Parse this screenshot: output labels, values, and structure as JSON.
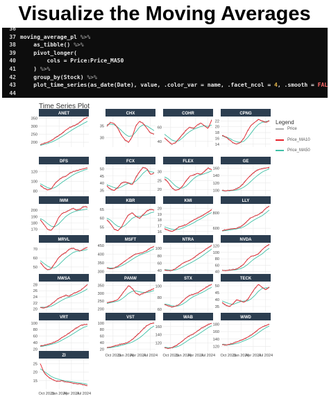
{
  "headline": "Visualize the Moving Averages",
  "code_lines": [
    {
      "n": "36",
      "text": ""
    },
    {
      "n": "37",
      "text": "moving_average_pl %>%"
    },
    {
      "n": "38",
      "text": "    as_tibble() %>%"
    },
    {
      "n": "39",
      "text": "    pivot_longer("
    },
    {
      "n": "40",
      "text": "        cols = Price:Price_MA50"
    },
    {
      "n": "41",
      "text": "    ) %>%"
    },
    {
      "n": "42",
      "text": "    group_by(Stock) %>%"
    },
    {
      "n": "43",
      "text": "    plot_time_series(as_date(Date), value, .color_var = name, .facet_ncol = 4, .smooth = FALSE)"
    },
    {
      "n": "44",
      "text": ""
    }
  ],
  "colors": {
    "price": "#b0b0b0",
    "ma10": "#e8222b",
    "ma50": "#3fc0a6",
    "strip": "#2c3e50",
    "strip_text": "#ffffff",
    "grid": "#e9e9e9"
  },
  "chart_data": {
    "type": "line",
    "title": "Time Series Plot",
    "legend": {
      "title": "Legend",
      "placement": "right",
      "entries": [
        "Price",
        "Price_MA10",
        "Price_MA50"
      ]
    },
    "x_tick_labels": [
      "Oct 2023",
      "Jan 2024",
      "Apr 2024",
      "Jul 2024"
    ],
    "facets": [
      {
        "name": "ANET",
        "y_ticks": [
          200,
          250,
          300,
          350
        ],
        "ylim": [
          170,
          360
        ],
        "ma10": [
          185,
          192,
          200,
          210,
          225,
          240,
          255,
          275,
          290,
          300,
          310,
          325,
          345,
          355
        ],
        "ma50": [
          180,
          186,
          192,
          200,
          210,
          222,
          236,
          250,
          265,
          280,
          293,
          305,
          318,
          330
        ]
      },
      {
        "name": "CHX",
        "y_ticks": [
          30,
          35
        ],
        "ylim": [
          26,
          39
        ],
        "ma10": [
          35,
          36.5,
          36,
          34,
          31,
          29,
          28,
          30.5,
          35,
          37,
          36,
          34,
          32,
          31.5
        ],
        "ma50": [
          35.5,
          35.8,
          35.5,
          34.5,
          33,
          31.5,
          30.5,
          30.8,
          32.5,
          34.5,
          35.5,
          35,
          34,
          33
        ]
      },
      {
        "name": "COHR",
        "y_ticks": [
          40,
          60
        ],
        "ylim": [
          32,
          75
        ],
        "ma10": [
          45,
          40,
          36,
          38,
          44,
          50,
          56,
          60,
          58,
          63,
          66,
          62,
          58,
          70
        ],
        "ma50": [
          50,
          46,
          42,
          40,
          41,
          45,
          50,
          54,
          57,
          59,
          61,
          62,
          61,
          63
        ]
      },
      {
        "name": "CPNG",
        "y_ticks": [
          14,
          16,
          18,
          20,
          22
        ],
        "ylim": [
          13,
          23.5
        ],
        "ma10": [
          17,
          16.5,
          15.5,
          14.5,
          14,
          14.5,
          16,
          18.5,
          20.5,
          21.5,
          22.5,
          22,
          21.5,
          22
        ],
        "ma50": [
          16.8,
          16.5,
          16,
          15.3,
          14.8,
          14.6,
          15,
          16.2,
          17.8,
          19.5,
          20.8,
          21.5,
          21.8,
          21.9
        ]
      },
      {
        "name": "DFS",
        "y_ticks": [
          80,
          100,
          120
        ],
        "ylim": [
          72,
          135
        ],
        "ma10": [
          92,
          86,
          82,
          84,
          95,
          102,
          108,
          110,
          116,
          120,
          122,
          124,
          126,
          128
        ],
        "ma50": [
          95,
          91,
          87,
          85,
          87,
          92,
          98,
          103,
          108,
          113,
          117,
          120,
          123,
          125
        ]
      },
      {
        "name": "FCX",
        "y_ticks": [
          35,
          40,
          45,
          50
        ],
        "ylim": [
          32,
          53
        ],
        "ma10": [
          38,
          36,
          35,
          37,
          40,
          41,
          40,
          39,
          44,
          48,
          51,
          50,
          46,
          47
        ],
        "ma50": [
          39,
          38,
          37,
          36.5,
          37.5,
          39,
          40,
          40,
          41.5,
          44,
          47,
          49,
          48,
          47.5
        ]
      },
      {
        "name": "FLEX",
        "y_ticks": [
          20,
          25,
          30
        ],
        "ylim": [
          17,
          34
        ],
        "ma10": [
          26,
          24,
          21,
          19.5,
          20,
          22,
          25,
          27.5,
          28,
          29,
          28.5,
          30,
          32,
          31
        ],
        "ma50": [
          27,
          26,
          24,
          22,
          20.8,
          20.8,
          22,
          24,
          26,
          27.5,
          28.2,
          28.8,
          29.5,
          30.5
        ]
      },
      {
        "name": "GE",
        "y_ticks": [
          100,
          120,
          140,
          160
        ],
        "ylim": [
          88,
          170
        ],
        "ma10": [
          100,
          99,
          100,
          101,
          104,
          110,
          120,
          132,
          142,
          150,
          156,
          158,
          160,
          162
        ],
        "ma50": [
          99,
          99,
          99,
          100,
          101,
          104,
          109,
          116,
          125,
          134,
          142,
          149,
          154,
          158
        ]
      },
      {
        "name": "IWM",
        "y_ticks": [
          170,
          180,
          190,
          200
        ],
        "ylim": [
          162,
          210
        ],
        "ma10": [
          185,
          178,
          170,
          168,
          176,
          188,
          195,
          197,
          200,
          203,
          200,
          202,
          206,
          205
        ],
        "ma50": [
          187,
          184,
          179,
          175,
          174,
          178,
          184,
          190,
          194,
          197,
          199,
          200,
          201,
          202
        ]
      },
      {
        "name": "KBR",
        "y_ticks": [
          55,
          60,
          65
        ],
        "ylim": [
          51,
          68
        ],
        "ma10": [
          59,
          57,
          54,
          53,
          55,
          59,
          62,
          63,
          61,
          60,
          62,
          64,
          65,
          64.5
        ],
        "ma50": [
          60,
          59,
          57,
          55.5,
          55,
          56,
          58,
          60,
          61,
          61,
          61.5,
          62,
          63,
          63.5
        ]
      },
      {
        "name": "KMI",
        "y_ticks": [
          16,
          17,
          18,
          19,
          20
        ],
        "ylim": [
          15.5,
          20.8
        ],
        "ma10": [
          16.5,
          16.2,
          16,
          16.3,
          16.8,
          17,
          17.2,
          17.6,
          18,
          18.3,
          18.6,
          19,
          19.4,
          19.8
        ],
        "ma50": [
          16.8,
          16.6,
          16.4,
          16.3,
          16.4,
          16.6,
          16.9,
          17.2,
          17.5,
          17.9,
          18.2,
          18.6,
          19,
          19.3
        ]
      },
      {
        "name": "LLY",
        "y_ticks": [
          600,
          800
        ],
        "ylim": [
          520,
          920
        ],
        "ma10": [
          570,
          580,
          590,
          595,
          600,
          620,
          650,
          700,
          740,
          760,
          780,
          810,
          860,
          890
        ],
        "ma50": [
          565,
          570,
          578,
          585,
          592,
          602,
          620,
          650,
          685,
          715,
          740,
          765,
          800,
          840
        ]
      },
      {
        "name": "MRVL",
        "y_ticks": [
          50,
          60,
          70
        ],
        "ylim": [
          43,
          77
        ],
        "ma10": [
          55,
          50,
          47,
          48,
          54,
          60,
          64,
          66,
          70,
          71,
          69,
          68,
          70,
          72
        ],
        "ma50": [
          57,
          54,
          51,
          49,
          49,
          52,
          56,
          60,
          63,
          66,
          67.5,
          68,
          68.5,
          69.5
        ]
      },
      {
        "name": "MSFT",
        "y_ticks": [
          300,
          350,
          400,
          450
        ],
        "ylim": [
          290,
          465
        ],
        "ma10": [
          320,
          315,
          320,
          330,
          345,
          360,
          375,
          390,
          400,
          405,
          410,
          420,
          435,
          445
        ],
        "ma50": [
          322,
          320,
          320,
          324,
          332,
          343,
          356,
          370,
          383,
          394,
          402,
          410,
          420,
          430
        ]
      },
      {
        "name": "NTRA",
        "y_ticks": [
          40,
          60,
          80,
          100
        ],
        "ylim": [
          33,
          115
        ],
        "ma10": [
          42,
          40,
          41,
          45,
          52,
          60,
          64,
          68,
          74,
          82,
          88,
          95,
          102,
          108
        ],
        "ma50": [
          43,
          42,
          41,
          42,
          45,
          50,
          55,
          60,
          65,
          71,
          77,
          84,
          91,
          98
        ]
      },
      {
        "name": "NVDA",
        "y_ticks": [
          40,
          60,
          80,
          100,
          120
        ],
        "ylim": [
          35,
          130
        ],
        "ma10": [
          44,
          43,
          45,
          46,
          48,
          55,
          64,
          78,
          88,
          90,
          96,
          108,
          118,
          125
        ],
        "ma50": [
          44,
          44,
          44,
          45,
          46,
          49,
          54,
          62,
          72,
          81,
          88,
          95,
          105,
          113
        ]
      },
      {
        "name": "NWSA",
        "y_ticks": [
          20,
          22,
          24,
          26,
          28
        ],
        "ylim": [
          19,
          29
        ],
        "ma10": [
          20.5,
          20.3,
          20.8,
          21.5,
          22.5,
          23.5,
          24,
          24.5,
          24.2,
          25,
          25.5,
          26,
          27,
          28
        ],
        "ma50": [
          20.6,
          20.5,
          20.6,
          20.9,
          21.5,
          22.2,
          22.9,
          23.5,
          23.9,
          24.3,
          24.8,
          25.3,
          25.9,
          26.6
        ]
      },
      {
        "name": "PANW",
        "y_ticks": [
          200,
          250,
          300,
          350
        ],
        "ylim": [
          180,
          375
        ],
        "ma10": [
          240,
          245,
          250,
          260,
          290,
          320,
          350,
          330,
          300,
          290,
          300,
          310,
          320,
          330
        ],
        "ma50": [
          235,
          240,
          245,
          250,
          262,
          280,
          300,
          313,
          315,
          310,
          305,
          306,
          310,
          318
        ]
      },
      {
        "name": "STX",
        "y_ticks": [
          60,
          80,
          100
        ],
        "ylim": [
          55,
          108
        ],
        "ma10": [
          68,
          66,
          64,
          65,
          68,
          74,
          80,
          84,
          86,
          88,
          92,
          96,
          100,
          103
        ],
        "ma50": [
          69,
          68,
          66,
          65,
          66,
          69,
          73,
          78,
          82,
          85,
          88,
          91,
          95,
          98
        ]
      },
      {
        "name": "TECK",
        "y_ticks": [
          35,
          40,
          45,
          50
        ],
        "ylim": [
          31,
          53
        ],
        "ma10": [
          38,
          36,
          35,
          37,
          40,
          39,
          38,
          40,
          44,
          48,
          51,
          49,
          47,
          49
        ],
        "ma50": [
          39,
          38,
          37,
          36.5,
          37.5,
          38.5,
          39,
          39,
          40.5,
          43,
          46,
          48,
          48.5,
          48.5
        ]
      },
      {
        "name": "VRT",
        "y_ticks": [
          20,
          40,
          60,
          80,
          100
        ],
        "ylim": [
          15,
          108
        ],
        "ma10": [
          30,
          32,
          35,
          38,
          42,
          48,
          56,
          62,
          70,
          78,
          85,
          92,
          95,
          96
        ],
        "ma50": [
          28,
          30,
          32,
          35,
          38,
          42,
          48,
          54,
          60,
          67,
          74,
          81,
          87,
          91
        ]
      },
      {
        "name": "VST",
        "y_ticks": [
          20,
          40,
          60,
          80,
          100
        ],
        "ylim": [
          15,
          108
        ],
        "ma10": [
          25,
          27,
          30,
          33,
          36,
          38,
          42,
          50,
          60,
          70,
          82,
          92,
          98,
          100
        ],
        "ma50": [
          24,
          25,
          27,
          29,
          32,
          35,
          38,
          42,
          48,
          55,
          64,
          74,
          84,
          91
        ]
      },
      {
        "name": "WAB",
        "y_ticks": [
          120,
          140,
          160
        ],
        "ylim": [
          100,
          175
        ],
        "ma10": [
          108,
          106,
          108,
          112,
          118,
          125,
          132,
          138,
          142,
          148,
          155,
          160,
          165,
          168
        ],
        "ma50": [
          109,
          108,
          108,
          109,
          112,
          117,
          123,
          129,
          134,
          139,
          145,
          151,
          157,
          162
        ]
      },
      {
        "name": "WWD",
        "y_ticks": [
          120,
          140,
          160,
          180
        ],
        "ylim": [
          108,
          190
        ],
        "ma10": [
          125,
          124,
          126,
          128,
          132,
          136,
          140,
          145,
          150,
          158,
          166,
          172,
          176,
          180
        ],
        "ma50": [
          126,
          125,
          125,
          126,
          128,
          131,
          135,
          139,
          144,
          150,
          157,
          164,
          170,
          175
        ]
      },
      {
        "name": "ZI",
        "y_ticks": [
          15,
          20,
          25
        ],
        "ylim": [
          10,
          28
        ],
        "ma10": [
          25,
          20,
          17.5,
          16,
          15,
          14.5,
          15,
          14.2,
          14,
          13.5,
          13.2,
          13,
          12.5,
          12
        ],
        "ma50": [
          22,
          20.5,
          19,
          17.5,
          16.5,
          15.8,
          15.2,
          14.8,
          14.5,
          14.2,
          13.9,
          13.6,
          13.2,
          12.8
        ]
      }
    ]
  }
}
